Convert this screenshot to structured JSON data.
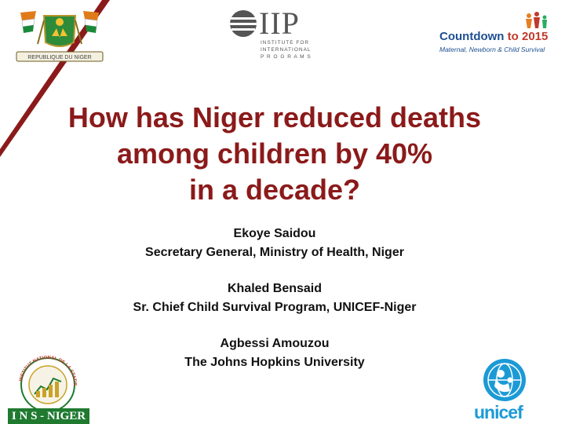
{
  "slide": {
    "title_lines": [
      "How has Niger reduced deaths",
      "among children by 40%",
      "in a decade?"
    ],
    "authors": [
      {
        "name": "Ekoye Saidou",
        "role": "Secretary General, Ministry of Health, Niger"
      },
      {
        "name": "Khaled Bensaid",
        "role": "Sr. Chief Child Survival Program, UNICEF-Niger"
      },
      {
        "name": "Agbessi Amouzou",
        "role": "The Johns Hopkins University"
      }
    ]
  },
  "logos": {
    "niger_emblem": {
      "icon": "niger-coat-of-arms-icon",
      "text": "REPUBLIQUE DU NIGER"
    },
    "iip": {
      "name": "IIP",
      "subtitle": "INSTITUTE FOR\nINTERNATIONAL\nP R O G R A M S"
    },
    "countdown": {
      "main": "Countdown",
      "to": "to 2015",
      "subtitle": "Maternal, Newborn & Child Survival"
    },
    "ins": {
      "ring_text": "INSTITUT NATIONAL DE LA STATISTIQUE",
      "bar": "I N S - NIGER"
    },
    "unicef": {
      "word": "unicef",
      "icon": "unicef-globe-icon"
    }
  },
  "colors": {
    "title": "#8b1a1a",
    "corner": "#8b1a1a",
    "ins_green": "#1f7a30",
    "unicef_blue": "#1c9ad6",
    "countdown_blue": "#1d4f91"
  }
}
